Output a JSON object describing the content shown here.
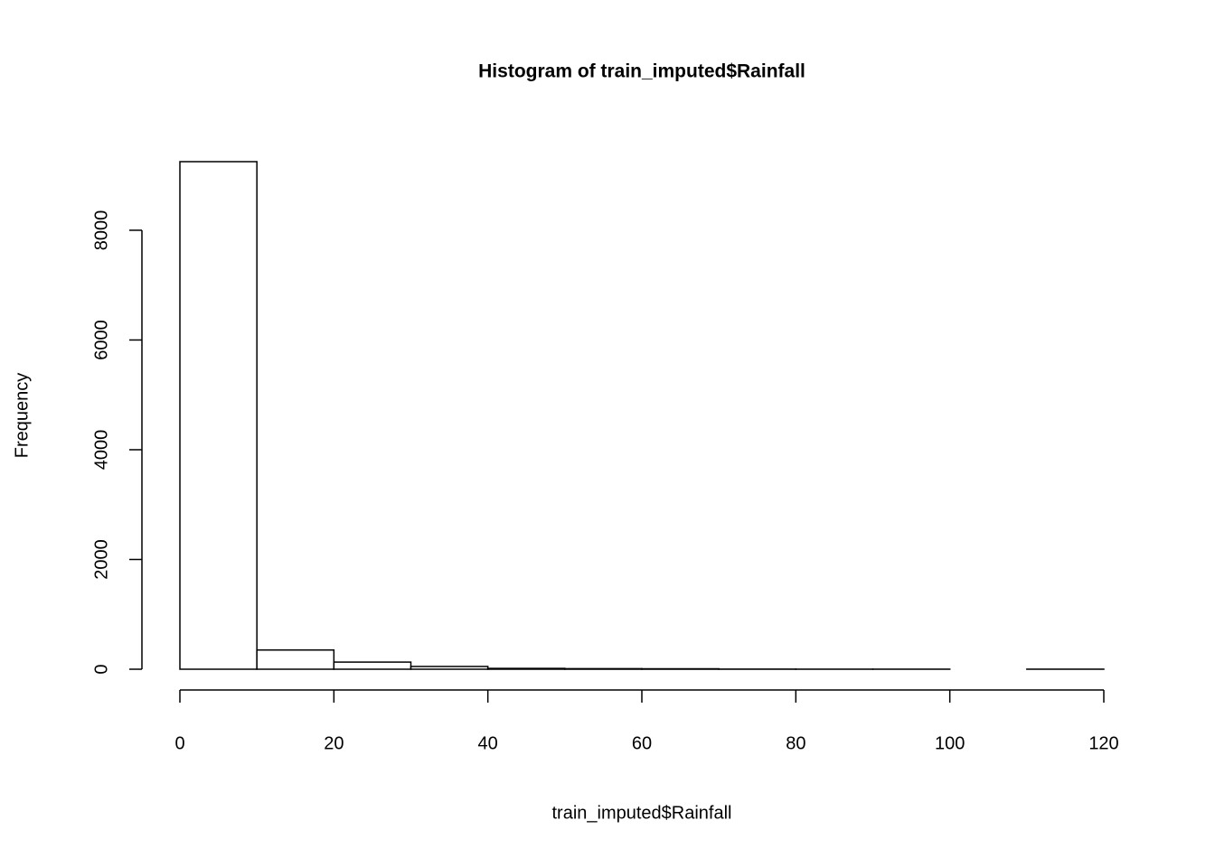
{
  "chart_data": {
    "type": "histogram",
    "title": "Histogram of train_imputed$Rainfall",
    "x_label": "train_imputed$Rainfall",
    "y_label": "Frequency",
    "bins": [
      0,
      10,
      20,
      30,
      40,
      50,
      60,
      70,
      80,
      90,
      100,
      110,
      120
    ],
    "values": [
      9250,
      350,
      130,
      50,
      15,
      10,
      8,
      2,
      1,
      1,
      0,
      1
    ],
    "color": "#ffffff",
    "edge_color": "#000000",
    "xlim": [
      0,
      120
    ],
    "xticks": [
      0,
      20,
      40,
      60,
      80,
      100,
      120
    ],
    "ylim": [
      0,
      9250
    ],
    "yticks": [
      0,
      2000,
      4000,
      6000,
      8000
    ]
  }
}
